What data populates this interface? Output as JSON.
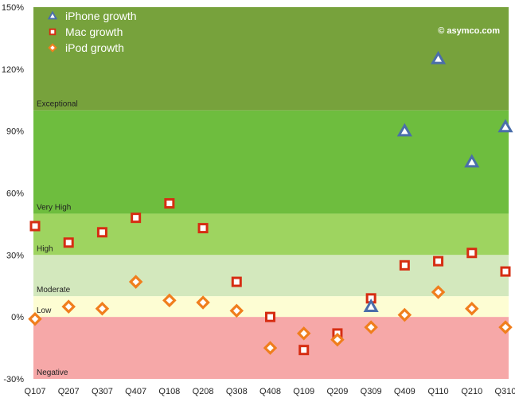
{
  "chart_data": {
    "type": "scatter",
    "watermark": "© asymco.com",
    "categories": [
      "Q107",
      "Q207",
      "Q307",
      "Q407",
      "Q108",
      "Q208",
      "Q308",
      "Q408",
      "Q109",
      "Q209",
      "Q309",
      "Q409",
      "Q110",
      "Q210",
      "Q310"
    ],
    "y_ticks": [
      "-30%",
      "0%",
      "30%",
      "60%",
      "90%",
      "120%",
      "150%"
    ],
    "ylim": [
      -30,
      150
    ],
    "zones": [
      {
        "label": "Exceptional",
        "from": 100,
        "to": 150,
        "color": "#77a23c"
      },
      {
        "label": "Very High",
        "from": 50,
        "to": 100,
        "color": "#6ebd3e"
      },
      {
        "label": "High",
        "from": 30,
        "to": 50,
        "color": "#9ed460"
      },
      {
        "label": "Moderate",
        "from": 10,
        "to": 30,
        "color": "#d3e8bd"
      },
      {
        "label": "Low",
        "from": 0,
        "to": 10,
        "color": "#fdfdd3"
      },
      {
        "label": "Negative",
        "from": -30,
        "to": 0,
        "color": "#f6a8a8"
      }
    ],
    "series": [
      {
        "name": "iPhone growth",
        "marker": "triangle",
        "color": "#4a6eaa",
        "values": [
          null,
          null,
          null,
          null,
          null,
          null,
          null,
          null,
          null,
          null,
          5,
          90,
          125,
          75,
          92
        ]
      },
      {
        "name": "Mac growth",
        "marker": "square",
        "color": "#d62d12",
        "values": [
          44,
          36,
          41,
          48,
          55,
          43,
          17,
          0,
          -16,
          -8,
          9,
          25,
          27,
          31,
          22
        ]
      },
      {
        "name": "iPod growth",
        "marker": "diamond",
        "color": "#f07e1d",
        "values": [
          -1,
          5,
          4,
          17,
          8,
          7,
          3,
          -15,
          -8,
          -11,
          -5,
          1,
          12,
          4,
          -5
        ]
      }
    ]
  }
}
